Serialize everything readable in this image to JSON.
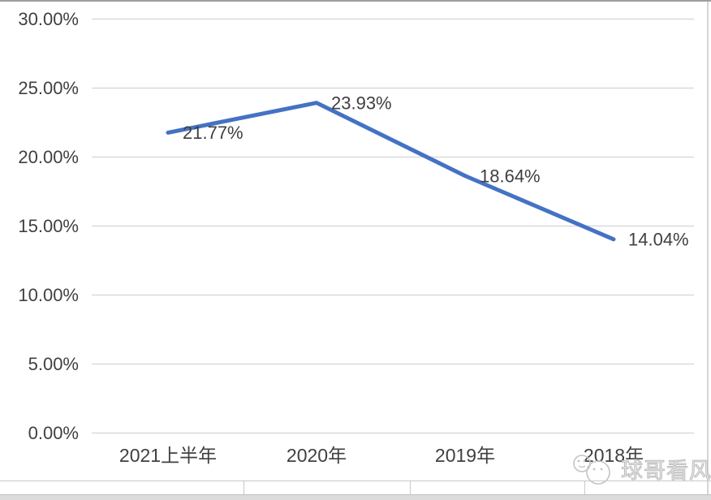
{
  "chart_data": {
    "type": "line",
    "categories": [
      "2021上半年",
      "2020年",
      "2019年",
      "2018年"
    ],
    "values": [
      21.77,
      23.93,
      18.64,
      14.04
    ],
    "data_labels": [
      "21.77%",
      "23.93%",
      "18.64%",
      "14.04%"
    ],
    "y_axis": {
      "tick_values": [
        30,
        25,
        20,
        15,
        10,
        5,
        0
      ],
      "tick_labels": [
        "30.00%",
        "25.00%",
        "20.00%",
        "15.00%",
        "10.00%",
        "5.00%",
        "0.00%"
      ]
    },
    "ylim": [
      0,
      30
    ],
    "grid": true,
    "legend": false,
    "title": "",
    "xlabel": "",
    "ylabel": ""
  },
  "colors": {
    "line": "#4472C4",
    "grid": "#d9d9d9",
    "axis_text": "#404040",
    "watermark": "#bdbdbd"
  },
  "watermark": {
    "logo": "panda-face-icon",
    "text": "球哥看风"
  }
}
